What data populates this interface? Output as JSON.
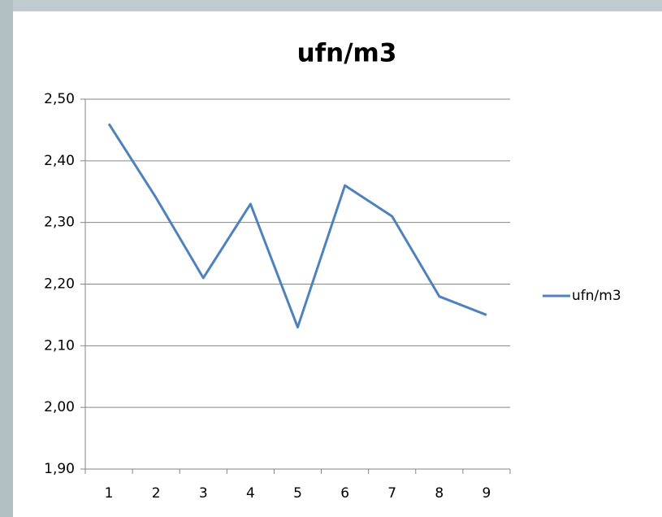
{
  "chart_data": {
    "type": "line",
    "title": "ufn/m3",
    "categories": [
      "1",
      "2",
      "3",
      "4",
      "5",
      "6",
      "7",
      "8",
      "9"
    ],
    "series": [
      {
        "name": "ufn/m3",
        "color": "#4f81bd",
        "values": [
          2.46,
          2.34,
          2.21,
          2.33,
          2.13,
          2.36,
          2.31,
          2.18,
          2.15
        ]
      }
    ],
    "ylim": [
      1.9,
      2.5
    ],
    "yticks": [
      {
        "value": 1.9,
        "label": "1,90"
      },
      {
        "value": 2.0,
        "label": "2,00"
      },
      {
        "value": 2.1,
        "label": "2,10"
      },
      {
        "value": 2.2,
        "label": "2,20"
      },
      {
        "value": 2.3,
        "label": "2,30"
      },
      {
        "value": 2.4,
        "label": "2,40"
      },
      {
        "value": 2.5,
        "label": "2,50"
      }
    ],
    "grid": true,
    "legend": "right"
  }
}
